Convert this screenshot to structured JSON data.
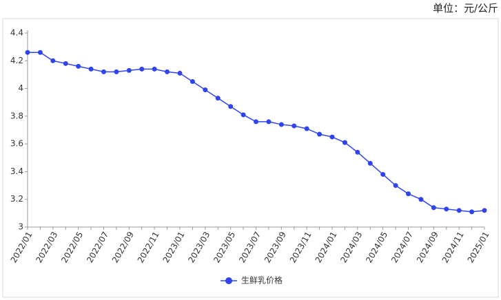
{
  "chart_data": {
    "type": "line",
    "unit_label": "单位：元/公斤",
    "categories": [
      "2022/01",
      null,
      "2022/03",
      null,
      "2022/05",
      null,
      "2022/07",
      null,
      "2022/09",
      null,
      "2022/11",
      null,
      "2023/01",
      null,
      "2023/03",
      null,
      "2023/05",
      null,
      "2023/07",
      null,
      "2023/09",
      null,
      "2023/11",
      null,
      "2024/01",
      null,
      "2024/03",
      null,
      "2024/05",
      null,
      "2024/07",
      null,
      "2024/09",
      null,
      "2024/11",
      null,
      "2025/01"
    ],
    "series": [
      {
        "name": "生鲜乳价格",
        "color": "#2f43f0",
        "values": [
          4.26,
          4.26,
          4.2,
          4.18,
          4.16,
          4.14,
          4.12,
          4.12,
          4.13,
          4.14,
          4.14,
          4.12,
          4.11,
          4.05,
          3.99,
          3.93,
          3.87,
          3.81,
          3.76,
          3.76,
          3.74,
          3.73,
          3.71,
          3.67,
          3.65,
          3.61,
          3.54,
          3.46,
          3.38,
          3.3,
          3.24,
          3.2,
          3.14,
          3.13,
          3.12,
          3.11,
          3.12
        ]
      }
    ],
    "ylim": [
      3,
      4.4
    ],
    "yticks": [
      3,
      3.2,
      3.4,
      3.6,
      3.8,
      4,
      4.2,
      4.4
    ],
    "grid": false
  }
}
